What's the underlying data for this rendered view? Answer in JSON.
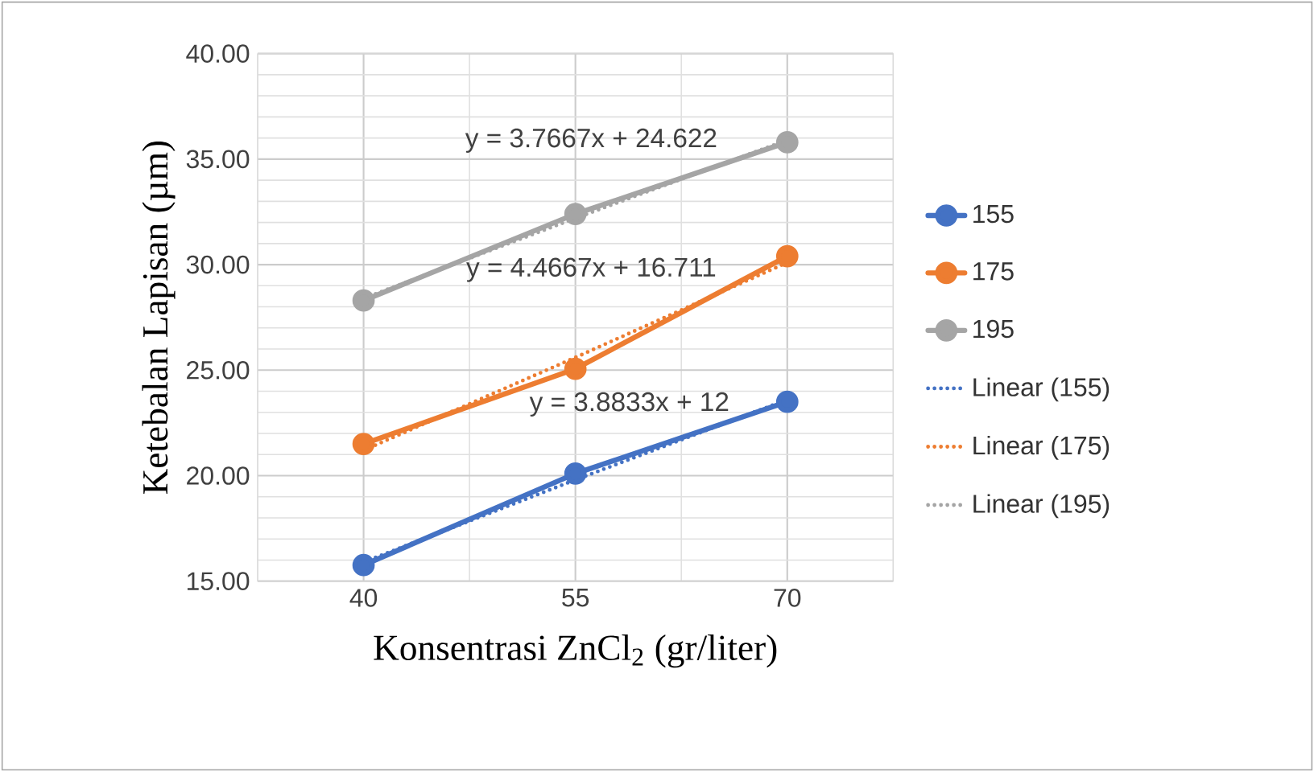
{
  "chart_data": {
    "type": "line",
    "xlabel": "Konsentrasi ZnCl$_{2}$ (gr/liter)",
    "ylabel": "Ketebalan Lapisan (µm)",
    "categories": [
      "40",
      "55",
      "70"
    ],
    "series": [
      {
        "name": "155",
        "color": "#4472c4",
        "values": [
          15.76,
          20.1,
          23.5
        ],
        "marker": "circle",
        "line_style": "solid"
      },
      {
        "name": "175",
        "color": "#ed7d31",
        "values": [
          21.5,
          25.06,
          30.4
        ],
        "marker": "circle",
        "line_style": "solid"
      },
      {
        "name": "195",
        "color": "#a5a5a5",
        "values": [
          28.3,
          32.4,
          35.8
        ],
        "marker": "circle",
        "line_style": "solid"
      },
      {
        "name": "Linear (155)",
        "color": "#4472c4",
        "values": [
          15.9,
          19.8,
          23.6
        ],
        "marker": "none",
        "line_style": "dotted"
      },
      {
        "name": "Linear (175)",
        "color": "#ed7d31",
        "values": [
          21.2,
          25.6,
          30.1
        ],
        "marker": "none",
        "line_style": "dotted"
      },
      {
        "name": "Linear (195)",
        "color": "#a5a5a5",
        "values": [
          28.4,
          32.2,
          35.9
        ],
        "marker": "none",
        "line_style": "dotted"
      }
    ],
    "ylim": [
      15,
      40
    ],
    "yticks": [
      {
        "value": 15,
        "label": "15.00"
      },
      {
        "value": 20,
        "label": "20.00"
      },
      {
        "value": 25,
        "label": "25.00"
      },
      {
        "value": 30,
        "label": "30.00"
      },
      {
        "value": 35,
        "label": "35.00"
      },
      {
        "value": 40,
        "label": "40.00"
      }
    ],
    "annotations": [
      "y = 3.7667x + 24.622",
      "y = 4.4667x + 16.711",
      "y = 3.8833x + 12"
    ],
    "grid": true,
    "legend": "right"
  }
}
